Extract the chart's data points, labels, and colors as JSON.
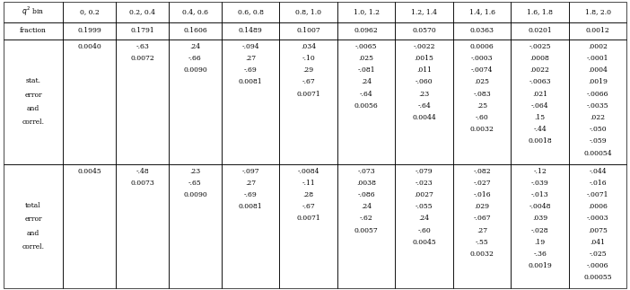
{
  "col_headers_q2": "$q^2$ bin",
  "bin_labels": [
    "0, 0.2",
    "0.2, 0.4",
    "0.4, 0.6",
    "0.6, 0.8",
    "0.8, 1.0",
    "1.0, 1.2",
    "1.2, 1.4",
    "1.4, 1.6",
    "1.6, 1.8",
    "1.8, 2.0"
  ],
  "fraction_label": "fraction",
  "frac_vals": [
    "0.1999",
    "0.1791",
    "0.1606",
    "0.1489",
    "0.1007",
    "0.0962",
    "0.0570",
    "0.0363",
    "0.0201",
    "0.0012"
  ],
  "stat_label_lines": [
    "stat.",
    "error",
    "and",
    "correl."
  ],
  "total_label_lines": [
    "total",
    "error",
    "and",
    "correl."
  ],
  "stat_data": [
    [
      "0.0040",
      "-.63",
      ".24",
      "-.094",
      ".034",
      "-.0065",
      "-.0022",
      "0.0006",
      "-.0025",
      ".0002"
    ],
    [
      "",
      "0.0072",
      "-.66",
      ".27",
      "-.10",
      ".025",
      ".0015",
      "-.0003",
      ".0008",
      "-.0001"
    ],
    [
      "",
      "",
      "0.0090",
      "-.69",
      ".29",
      "-.081",
      ".011",
      "-.0074",
      ".0022",
      ".0004"
    ],
    [
      "",
      "",
      "",
      "0.0081",
      "-.67",
      ".24",
      "-.060",
      ".025",
      "-.0063",
      ".0019"
    ],
    [
      "",
      "",
      "",
      "",
      "0.0071",
      "-.64",
      ".23",
      "-.083",
      ".021",
      "-.0066"
    ],
    [
      "",
      "",
      "",
      "",
      "",
      "0.0056",
      "-.64",
      ".25",
      "-.064",
      "-.0035"
    ],
    [
      "",
      "",
      "",
      "",
      "",
      "",
      "0.0044",
      "-.60",
      ".15",
      ".022"
    ],
    [
      "",
      "",
      "",
      "",
      "",
      "",
      "",
      "0.0032",
      "-.44",
      "-.050"
    ],
    [
      "",
      "",
      "",
      "",
      "",
      "",
      "",
      "",
      "0.0018",
      "-.059"
    ],
    [
      "",
      "",
      "",
      "",
      "",
      "",
      "",
      "",
      "",
      "0.00054"
    ]
  ],
  "total_data": [
    [
      "0.0045",
      "-.48",
      ".23",
      "-.097",
      "-.0084",
      "-.073",
      "-.079",
      "-.082",
      "-.12",
      "-.044"
    ],
    [
      "",
      "0.0073",
      "-.65",
      ".27",
      "-.11",
      ".0038",
      "-.023",
      "-.027",
      "-.039",
      "-.016"
    ],
    [
      "",
      "",
      "0.0090",
      "-.69",
      ".28",
      "-.086",
      ".0027",
      "-.016",
      "-.013",
      "-.0071"
    ],
    [
      "",
      "",
      "",
      "0.0081",
      "-.67",
      ".24",
      "-.055",
      ".029",
      "-.0048",
      ".0006"
    ],
    [
      "",
      "",
      "",
      "",
      "0.0071",
      "-.62",
      ".24",
      "-.067",
      ".039",
      "-.0003"
    ],
    [
      "",
      "",
      "",
      "",
      "",
      "0.0057",
      "-.60",
      ".27",
      "-.028",
      ".0075"
    ],
    [
      "",
      "",
      "",
      "",
      "",
      "",
      "0.0045",
      "-.55",
      ".19",
      ".041"
    ],
    [
      "",
      "",
      "",
      "",
      "",
      "",
      "",
      "0.0032",
      "-.36",
      "-.025"
    ],
    [
      "",
      "",
      "",
      "",
      "",
      "",
      "",
      "",
      "0.0019",
      "-.0006"
    ],
    [
      "",
      "",
      "",
      "",
      "",
      "",
      "",
      "",
      "",
      "0.00055"
    ]
  ],
  "bg_color": "#ffffff",
  "font_size": 5.5,
  "line_width": 0.5
}
